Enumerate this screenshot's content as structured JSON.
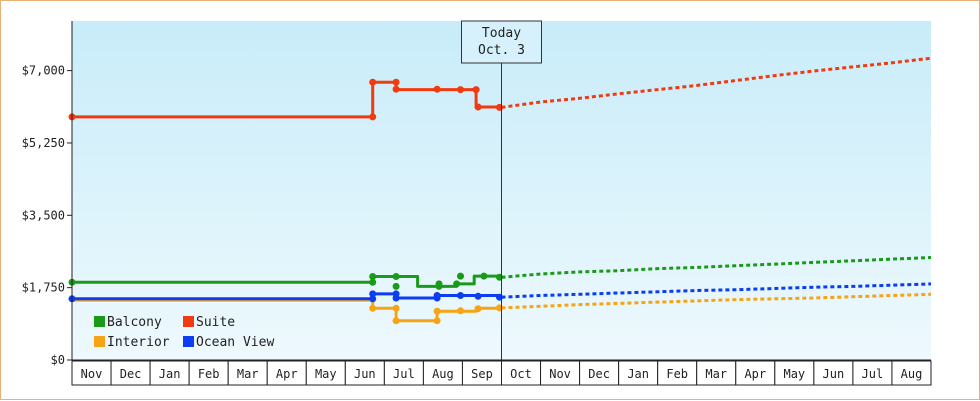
{
  "chart_data": {
    "type": "line",
    "title": "",
    "xlabel": "",
    "ylabel": "",
    "ylim": [
      0,
      8200
    ],
    "y_ticks": [
      {
        "value": 0,
        "label": "$0"
      },
      {
        "value": 1750,
        "label": "$1,750"
      },
      {
        "value": 3500,
        "label": "$3,500"
      },
      {
        "value": 5250,
        "label": "$5,250"
      },
      {
        "value": 7000,
        "label": "$7,000"
      }
    ],
    "x_categories": [
      "Nov",
      "Dec",
      "Jan",
      "Feb",
      "Mar",
      "Apr",
      "May",
      "Jun",
      "Jul",
      "Aug",
      "Sep",
      "Oct",
      "Nov",
      "Dec",
      "Jan",
      "Feb",
      "Mar",
      "Apr",
      "May",
      "Jun",
      "Jul",
      "Aug"
    ],
    "today_marker": {
      "line1": "Today",
      "line2": "Oct. 3",
      "x": 11
    },
    "legend": {
      "placement": "bottom-left"
    },
    "colors": {
      "plot_bg_top": "#c8ecf9",
      "plot_bg_bottom": "#eef9fd",
      "frame": "#e6b27a"
    },
    "series": [
      {
        "name": "Balcony",
        "color": "#1a9a1a",
        "history": [
          [
            0,
            1880
          ],
          [
            7.7,
            1880
          ],
          [
            7.7,
            2020
          ],
          [
            8.85,
            2020
          ],
          [
            8.85,
            1780
          ],
          [
            9.85,
            1780
          ],
          [
            9.85,
            1840
          ],
          [
            10.3,
            1840
          ],
          [
            10.3,
            2030
          ],
          [
            11,
            2030
          ]
        ],
        "markers": [
          [
            0,
            1880
          ],
          [
            7.7,
            1880
          ],
          [
            7.7,
            2020
          ],
          [
            8.3,
            2020
          ],
          [
            8.3,
            1780
          ],
          [
            9.4,
            1780
          ],
          [
            9.4,
            1840
          ],
          [
            9.85,
            1840
          ],
          [
            9.95,
            2030
          ],
          [
            10.55,
            2030
          ],
          [
            10.95,
            2000
          ]
        ],
        "forecast": [
          [
            11,
            2000
          ],
          [
            12,
            2080
          ],
          [
            13,
            2130
          ],
          [
            14,
            2160
          ],
          [
            15,
            2210
          ],
          [
            16,
            2240
          ],
          [
            17,
            2280
          ],
          [
            18,
            2320
          ],
          [
            19,
            2360
          ],
          [
            20,
            2400
          ],
          [
            21,
            2440
          ],
          [
            22,
            2480
          ]
        ]
      },
      {
        "name": "Suite",
        "color": "#f03a10",
        "history": [
          [
            0,
            5880
          ],
          [
            7.7,
            5880
          ],
          [
            7.7,
            6720
          ],
          [
            8.3,
            6720
          ],
          [
            8.3,
            6540
          ],
          [
            10.35,
            6540
          ],
          [
            10.35,
            6120
          ],
          [
            11,
            6120
          ]
        ],
        "markers": [
          [
            0,
            5880
          ],
          [
            7.7,
            5880
          ],
          [
            7.7,
            6720
          ],
          [
            8.3,
            6720
          ],
          [
            8.3,
            6550
          ],
          [
            9.35,
            6550
          ],
          [
            9.95,
            6540
          ],
          [
            10.35,
            6540
          ],
          [
            10.4,
            6120
          ],
          [
            10.95,
            6110
          ]
        ],
        "forecast": [
          [
            11,
            6110
          ],
          [
            12,
            6240
          ],
          [
            13,
            6330
          ],
          [
            14,
            6440
          ],
          [
            15,
            6540
          ],
          [
            16,
            6640
          ],
          [
            17,
            6760
          ],
          [
            18,
            6880
          ],
          [
            19,
            6990
          ],
          [
            20,
            7090
          ],
          [
            21,
            7190
          ],
          [
            22,
            7300
          ]
        ]
      },
      {
        "name": "Interior",
        "color": "#f5a415",
        "history": [
          [
            0,
            1450
          ],
          [
            7.7,
            1450
          ],
          [
            7.7,
            1250
          ],
          [
            8.3,
            1250
          ],
          [
            8.3,
            950
          ],
          [
            9.35,
            950
          ],
          [
            9.35,
            1180
          ],
          [
            10.35,
            1180
          ],
          [
            10.35,
            1250
          ],
          [
            11,
            1250
          ]
        ],
        "markers": [
          [
            7.7,
            1250
          ],
          [
            8.3,
            1250
          ],
          [
            8.3,
            950
          ],
          [
            9.35,
            950
          ],
          [
            9.35,
            1180
          ],
          [
            9.95,
            1190
          ],
          [
            10.4,
            1240
          ],
          [
            10.95,
            1260
          ]
        ],
        "forecast": [
          [
            11,
            1260
          ],
          [
            12,
            1300
          ],
          [
            13,
            1340
          ],
          [
            14,
            1370
          ],
          [
            15,
            1400
          ],
          [
            16,
            1430
          ],
          [
            17,
            1460
          ],
          [
            18,
            1480
          ],
          [
            19,
            1500
          ],
          [
            20,
            1530
          ],
          [
            21,
            1560
          ],
          [
            22,
            1590
          ]
        ]
      },
      {
        "name": "Ocean View",
        "color": "#0a3ef0",
        "history": [
          [
            0,
            1480
          ],
          [
            7.7,
            1480
          ],
          [
            7.7,
            1600
          ],
          [
            8.3,
            1600
          ],
          [
            8.3,
            1500
          ],
          [
            9.35,
            1500
          ],
          [
            9.35,
            1560
          ],
          [
            11,
            1560
          ]
        ],
        "markers": [
          [
            0,
            1480
          ],
          [
            7.7,
            1480
          ],
          [
            7.7,
            1600
          ],
          [
            8.3,
            1600
          ],
          [
            8.3,
            1500
          ],
          [
            9.35,
            1500
          ],
          [
            9.35,
            1560
          ],
          [
            9.95,
            1560
          ],
          [
            10.4,
            1540
          ],
          [
            10.95,
            1520
          ]
        ],
        "forecast": [
          [
            11,
            1520
          ],
          [
            12,
            1560
          ],
          [
            13,
            1590
          ],
          [
            14,
            1620
          ],
          [
            15,
            1650
          ],
          [
            16,
            1680
          ],
          [
            17,
            1700
          ],
          [
            18,
            1730
          ],
          [
            19,
            1760
          ],
          [
            20,
            1780
          ],
          [
            21,
            1810
          ],
          [
            22,
            1840
          ]
        ]
      }
    ]
  }
}
